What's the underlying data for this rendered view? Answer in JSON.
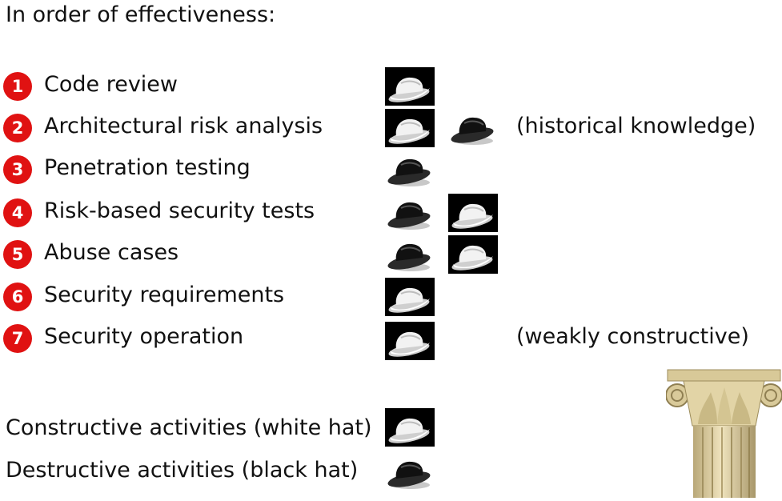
{
  "heading": "In order of effectiveness:",
  "activities": [
    {
      "num": "1",
      "label": "Code review",
      "hats": [
        "white"
      ],
      "note": ""
    },
    {
      "num": "2",
      "label": "Architectural risk analysis",
      "hats": [
        "white",
        "black"
      ],
      "note": "(historical knowledge)"
    },
    {
      "num": "3",
      "label": "Penetration testing",
      "hats": [
        "black"
      ],
      "note": ""
    },
    {
      "num": "4",
      "label": "Risk-based security tests",
      "hats": [
        "black",
        "white"
      ],
      "note": ""
    },
    {
      "num": "5",
      "label": "Abuse cases",
      "hats": [
        "black",
        "white"
      ],
      "note": ""
    },
    {
      "num": "6",
      "label": "Security requirements",
      "hats": [
        "white"
      ],
      "note": ""
    },
    {
      "num": "7",
      "label": "Security operation",
      "hats": [
        "white"
      ],
      "note": "(weakly constructive)"
    }
  ],
  "legend": {
    "constructive": "Constructive activities (white hat)",
    "destructive": "Destructive activities  (black hat)"
  },
  "colors": {
    "badge": "#e01212",
    "text": "#111111"
  },
  "icons": {
    "white_hat": "white-cowboy-hat-icon",
    "black_hat": "black-cowboy-hat-icon",
    "column": "ionic-column-icon"
  }
}
